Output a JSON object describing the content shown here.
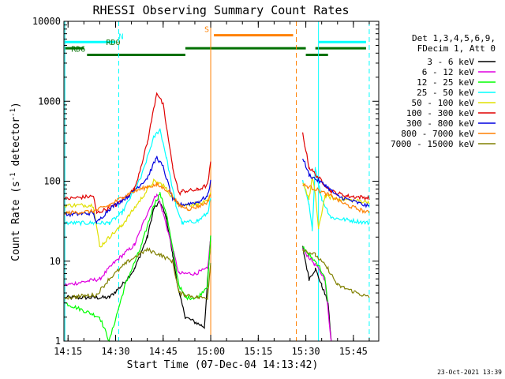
{
  "chart_data": {
    "type": "line",
    "title": "RHESSI Observing Summary Count Rates",
    "xlabel": "Start Time (07-Dec-04 14:13:42)",
    "ylabel": "Count Rate (s⁻¹ detector⁻¹)",
    "ylabel_main": "Count Rate (s",
    "ylabel_mid": " detector",
    "ylabel_end": ")",
    "ylabel_sup": "-1",
    "scale": "log",
    "xlim": [
      "14:13:42",
      "15:53"
    ],
    "ylim": [
      1,
      10000
    ],
    "x_ticks": [
      "14:15",
      "14:30",
      "14:45",
      "15:00",
      "15:15",
      "15:30",
      "15:45"
    ],
    "y_ticks": [
      "1",
      "10",
      "100",
      "1000",
      "10000"
    ],
    "date_stamp": "23-Oct-2021 13:39",
    "legend": {
      "position": "right",
      "header": [
        "Det 1,3,4,5,6,9,",
        "FDecim 1, Att 0"
      ]
    },
    "series": [
      {
        "name": "3 - 6 keV",
        "color": "#000000",
        "points": [
          [
            "14:14",
            3.5
          ],
          [
            "14:28",
            3.5
          ],
          [
            "14:32",
            5
          ],
          [
            "14:36",
            8
          ],
          [
            "14:40",
            20
          ],
          [
            "14:42",
            45
          ],
          [
            "14:44",
            55
          ],
          [
            "14:46",
            35
          ],
          [
            "14:48",
            12
          ],
          [
            "14:50",
            4
          ],
          [
            "14:52",
            2
          ],
          [
            "14:58",
            1.5
          ],
          [
            "15:00",
            20
          ],
          [
            "15:01",
            null
          ],
          [
            "15:28",
            null
          ],
          [
            "15:29",
            15
          ],
          [
            "15:31",
            6
          ],
          [
            "15:33",
            8
          ],
          [
            "15:35",
            5
          ],
          [
            "15:37",
            3
          ],
          [
            "15:38",
            1
          ]
        ]
      },
      {
        "name": "6 - 12 keV",
        "color": "#e000e0",
        "points": [
          [
            "14:14",
            5
          ],
          [
            "14:25",
            6
          ],
          [
            "14:30",
            10
          ],
          [
            "14:36",
            16
          ],
          [
            "14:40",
            40
          ],
          [
            "14:43",
            70
          ],
          [
            "14:45",
            40
          ],
          [
            "14:50",
            7
          ],
          [
            "14:55",
            7
          ],
          [
            "14:59",
            8
          ],
          [
            "15:00",
            20
          ],
          [
            "15:01",
            null
          ],
          [
            "15:28",
            null
          ],
          [
            "15:29",
            14
          ],
          [
            "15:33",
            9
          ],
          [
            "15:36",
            6
          ],
          [
            "15:38",
            1
          ]
        ]
      },
      {
        "name": "12 - 25 keV",
        "color": "#00ff00",
        "points": [
          [
            "14:14",
            3
          ],
          [
            "14:25",
            2
          ],
          [
            "14:28",
            1
          ],
          [
            "14:33",
            5
          ],
          [
            "14:38",
            15
          ],
          [
            "14:42",
            50
          ],
          [
            "14:44",
            70
          ],
          [
            "14:46",
            40
          ],
          [
            "14:50",
            5
          ],
          [
            "14:52",
            3.5
          ],
          [
            "14:56",
            3.5
          ],
          [
            "14:59",
            5
          ],
          [
            "15:00",
            20
          ],
          [
            "15:01",
            null
          ],
          [
            "15:28",
            null
          ],
          [
            "15:29",
            15
          ],
          [
            "15:31",
            12
          ],
          [
            "15:34",
            9
          ],
          [
            "15:36",
            6
          ],
          [
            "15:37",
            3
          ]
        ]
      },
      {
        "name": "25 - 50 keV",
        "color": "#00ffff",
        "points": [
          [
            "14:14",
            30
          ],
          [
            "14:23",
            30
          ],
          [
            "14:28",
            30
          ],
          [
            "14:32",
            40
          ],
          [
            "14:38",
            110
          ],
          [
            "14:42",
            350
          ],
          [
            "14:44",
            450
          ],
          [
            "14:46",
            200
          ],
          [
            "14:49",
            50
          ],
          [
            "14:51",
            30
          ],
          [
            "14:56",
            32
          ],
          [
            "14:59",
            40
          ],
          [
            "15:00",
            60
          ],
          [
            "15:01",
            null
          ],
          [
            "15:28",
            null
          ],
          [
            "15:29",
            100
          ],
          [
            "15:31",
            50
          ],
          [
            "15:32",
            25
          ],
          [
            "15:33",
            150
          ],
          [
            "15:35",
            60
          ],
          [
            "15:38",
            35
          ],
          [
            "15:50",
            30
          ]
        ]
      },
      {
        "name": "50 - 100 keV",
        "color": "#e0e000",
        "points": [
          [
            "14:14",
            50
          ],
          [
            "14:23",
            50
          ],
          [
            "14:25",
            15
          ],
          [
            "14:28",
            20
          ],
          [
            "14:32",
            28
          ],
          [
            "14:38",
            60
          ],
          [
            "14:42",
            100
          ],
          [
            "14:45",
            90
          ],
          [
            "14:49",
            55
          ],
          [
            "14:51",
            50
          ],
          [
            "14:56",
            52
          ],
          [
            "14:59",
            55
          ],
          [
            "15:00",
            70
          ],
          [
            "15:01",
            null
          ],
          [
            "15:28",
            null
          ],
          [
            "15:29",
            100
          ],
          [
            "15:31",
            60
          ],
          [
            "15:32",
            110
          ],
          [
            "15:33",
            70
          ],
          [
            "15:34",
            25
          ],
          [
            "15:36",
            65
          ],
          [
            "15:40",
            60
          ],
          [
            "15:50",
            55
          ]
        ]
      },
      {
        "name": "100 - 300 keV",
        "color": "#e00000",
        "points": [
          [
            "14:14",
            60
          ],
          [
            "14:23",
            65
          ],
          [
            "14:24",
            40
          ],
          [
            "14:30",
            50
          ],
          [
            "14:36",
            80
          ],
          [
            "14:40",
            300
          ],
          [
            "14:43",
            1300
          ],
          [
            "14:45",
            900
          ],
          [
            "14:48",
            150
          ],
          [
            "14:50",
            70
          ],
          [
            "14:51",
            75
          ],
          [
            "14:56",
            78
          ],
          [
            "14:59",
            90
          ],
          [
            "15:00",
            170
          ],
          [
            "15:01",
            null
          ],
          [
            "15:28",
            null
          ],
          [
            "15:29",
            400
          ],
          [
            "15:31",
            150
          ],
          [
            "15:35",
            100
          ],
          [
            "15:38",
            75
          ],
          [
            "15:43",
            65
          ],
          [
            "15:50",
            62
          ]
        ]
      },
      {
        "name": "300 - 800 keV",
        "color": "#0000e0",
        "points": [
          [
            "14:14",
            38
          ],
          [
            "14:23",
            40
          ],
          [
            "14:24",
            30
          ],
          [
            "14:28",
            45
          ],
          [
            "14:34",
            65
          ],
          [
            "14:40",
            110
          ],
          [
            "14:43",
            200
          ],
          [
            "14:45",
            150
          ],
          [
            "14:48",
            60
          ],
          [
            "14:50",
            50
          ],
          [
            "14:56",
            55
          ],
          [
            "14:59",
            65
          ],
          [
            "15:00",
            100
          ],
          [
            "15:01",
            null
          ],
          [
            "15:28",
            null
          ],
          [
            "15:29",
            200
          ],
          [
            "15:31",
            120
          ],
          [
            "15:36",
            90
          ],
          [
            "15:40",
            65
          ],
          [
            "15:50",
            48
          ]
        ]
      },
      {
        "name": "800 - 7000 keV",
        "color": "#ff8000",
        "points": [
          [
            "14:14",
            40
          ],
          [
            "14:23",
            42
          ],
          [
            "14:28",
            50
          ],
          [
            "14:34",
            70
          ],
          [
            "14:40",
            85
          ],
          [
            "14:43",
            90
          ],
          [
            "14:47",
            75
          ],
          [
            "14:50",
            50
          ],
          [
            "14:53",
            45
          ],
          [
            "14:56",
            48
          ],
          [
            "14:59",
            55
          ],
          [
            "15:00",
            70
          ],
          [
            "15:01",
            null
          ],
          [
            "15:28",
            null
          ],
          [
            "15:29",
            90
          ],
          [
            "15:33",
            80
          ],
          [
            "15:38",
            65
          ],
          [
            "15:43",
            50
          ],
          [
            "15:50",
            40
          ]
        ]
      },
      {
        "name": "7000 - 15000 keV",
        "color": "#808000",
        "points": [
          [
            "14:14",
            3.5
          ],
          [
            "14:24",
            3.8
          ],
          [
            "14:28",
            6
          ],
          [
            "14:34",
            10
          ],
          [
            "14:40",
            14
          ],
          [
            "14:44",
            12
          ],
          [
            "14:48",
            10
          ],
          [
            "14:50",
            4
          ],
          [
            "14:56",
            3.5
          ],
          [
            "14:59",
            3.5
          ],
          [
            "15:00",
            10
          ],
          [
            "15:01",
            null
          ],
          [
            "15:28",
            null
          ],
          [
            "15:29",
            14
          ],
          [
            "15:33",
            12
          ],
          [
            "15:37",
            8
          ],
          [
            "15:40",
            5
          ],
          [
            "15:50",
            3.5
          ]
        ]
      }
    ],
    "annotations": [
      {
        "label": "N",
        "color": "#00ffff",
        "bars": [
          [
            "14:14",
            "14:30"
          ],
          [
            "15:34",
            "15:49"
          ]
        ],
        "level": 5500,
        "text_at": "14:31"
      },
      {
        "label": "RD0",
        "color": "#007000",
        "bars": [
          [
            "14:14",
            "14:20"
          ],
          [
            "14:52",
            "15:30"
          ],
          [
            "15:33",
            "15:49"
          ]
        ],
        "level": 4600,
        "text_at": "14:27"
      },
      {
        "label": "RD6",
        "color": "#007000",
        "bars": [
          [
            "14:21",
            "14:52"
          ],
          [
            "15:30",
            "15:37"
          ]
        ],
        "level": 3800,
        "text_at": "14:16"
      },
      {
        "label": "S",
        "color": "#ff8000",
        "bars": [
          [
            "15:01",
            "15:26"
          ]
        ],
        "level": 6700,
        "text_at": "14:58"
      }
    ],
    "vlines": [
      {
        "t": "14:14",
        "color": "#00ffff",
        "style": "solid"
      },
      {
        "t": "14:31",
        "color": "#00ffff",
        "style": "dashed"
      },
      {
        "t": "15:00",
        "color": "#ff8000",
        "style": "solid"
      },
      {
        "t": "15:27",
        "color": "#ff8000",
        "style": "dashed"
      },
      {
        "t": "15:34",
        "color": "#00ffff",
        "style": "solid"
      },
      {
        "t": "15:50",
        "color": "#00ffff",
        "style": "dashed"
      }
    ]
  }
}
